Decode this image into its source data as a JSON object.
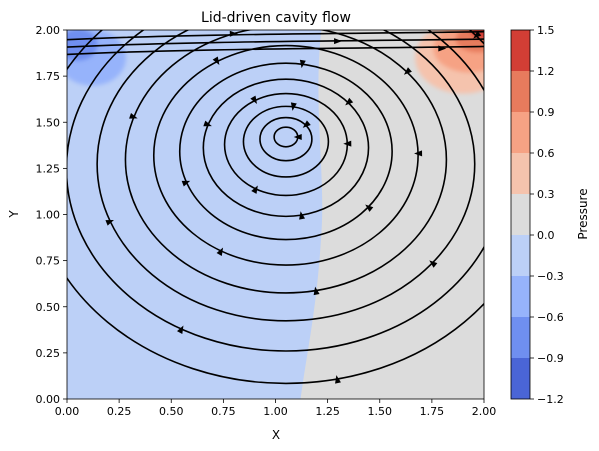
{
  "chart_data": {
    "type": "heatmap",
    "subtype": "filled contour with streamlines",
    "title": "Lid-driven cavity flow",
    "xlabel": "X",
    "ylabel": "Y",
    "xlim": [
      0,
      2
    ],
    "ylim": [
      0,
      2
    ],
    "xticks": [
      "0.00",
      "0.25",
      "0.50",
      "0.75",
      "1.00",
      "1.25",
      "1.50",
      "1.75",
      "2.00"
    ],
    "yticks": [
      "0.00",
      "0.25",
      "0.50",
      "0.75",
      "1.00",
      "1.25",
      "1.50",
      "1.75",
      "2.00"
    ],
    "colorbar": {
      "label": "Pressure",
      "levels": [
        -1.2,
        -0.9,
        -0.6,
        -0.3,
        0.0,
        0.3,
        0.6,
        0.9,
        1.2,
        1.5
      ],
      "ticks": [
        "−1.2",
        "−0.9",
        "−0.6",
        "−0.3",
        "0.0",
        "0.3",
        "0.6",
        "0.9",
        "1.2",
        "1.5"
      ],
      "colors": [
        "#4a65d6",
        "#6f8ff0",
        "#96b3fb",
        "#bcd0f7",
        "#dcdcdc",
        "#f5c3ad",
        "#f6a284",
        "#e77b5d",
        "#d23e35"
      ]
    },
    "pressure_regions": [
      {
        "level": [
          -0.3,
          0.0
        ],
        "note": "left half of cavity, x < ~1.2"
      },
      {
        "level": [
          0.0,
          0.3
        ],
        "note": "right half of cavity, x > ~1.2"
      },
      {
        "level": [
          -0.6,
          -0.3
        ],
        "note": "top-left corner"
      },
      {
        "level": [
          -0.9,
          -0.6
        ],
        "note": "top-left corner near lid"
      },
      {
        "level": [
          0.3,
          0.6
        ],
        "note": "top-right corner"
      },
      {
        "level": [
          0.6,
          0.9
        ],
        "note": "top-right corner"
      },
      {
        "level": [
          0.9,
          1.2
        ],
        "note": "top-right corner near lid"
      },
      {
        "level": [
          1.2,
          1.5
        ],
        "note": "top-right corner at lid"
      }
    ],
    "vortex_center": [
      1.05,
      1.43
    ],
    "grid": false
  },
  "colors": {
    "streamline": "#000000",
    "axis": "#000000",
    "background": "#ffffff"
  }
}
